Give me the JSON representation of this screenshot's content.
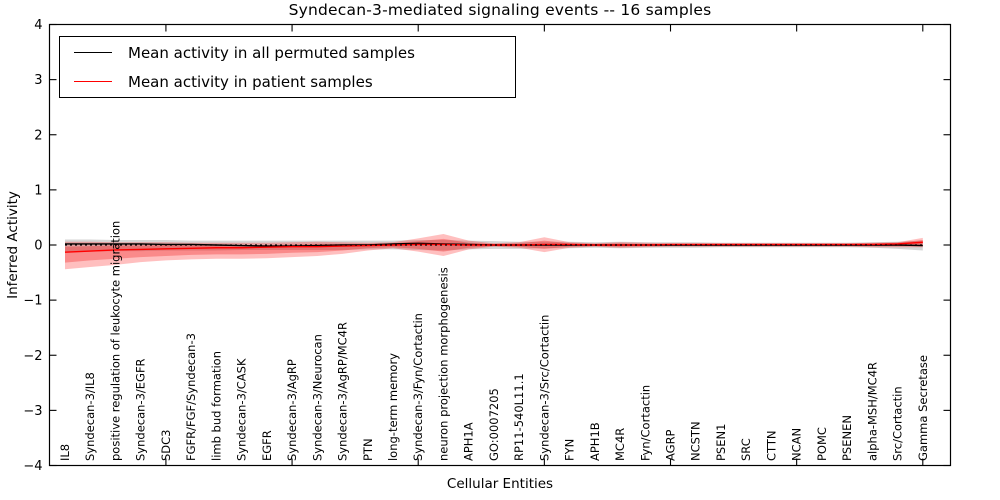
{
  "chart_data": {
    "type": "line",
    "title": "Syndecan-3-mediated signaling events -- 16 samples",
    "xlabel": "Cellular Entities",
    "ylabel": "Inferred Activity",
    "ylim": [
      -4,
      4
    ],
    "y_tick_values": [
      4,
      3,
      2,
      1,
      0,
      -1,
      -2,
      -3,
      -4
    ],
    "y_tick_labels": [
      "4",
      "3",
      "2",
      "1",
      "0",
      "−1",
      "−2",
      "−3",
      "−4"
    ],
    "x_major_tick_indices": [
      4,
      9,
      14,
      19,
      24,
      29,
      34
    ],
    "grid": false,
    "legend_position": "upper left",
    "zero_line": {
      "style": "dotted",
      "color": "#000000",
      "y": 0
    },
    "categories": [
      "IL8",
      "Syndecan-3/IL8",
      "positive regulation of leukocyte migration",
      "Syndecan-3/EGFR",
      "SDC3",
      "FGFR/FGF/Syndecan-3",
      "limb bud formation",
      "Syndecan-3/CASK",
      "EGFR",
      "Syndecan-3/AgRP",
      "Syndecan-3/Neurocan",
      "Syndecan-3/AgRP/MC4R",
      "PTN",
      "long-term memory",
      "Syndecan-3/Fyn/Cortactin",
      "neuron projection morphogenesis",
      "APH1A",
      "GO:0007205",
      "RP11-540L11.1",
      "Syndecan-3/Src/Cortactin",
      "FYN",
      "APH1B",
      "MC4R",
      "Fyn/Cortactin",
      "AGRP",
      "NCSTN",
      "PSEN1",
      "SRC",
      "CTTN",
      "NCAN",
      "POMC",
      "PSENEN",
      "alpha-MSH/MC4R",
      "Src/Cortactin",
      "Gamma Secretase"
    ],
    "series": [
      {
        "name": "Mean activity in all permuted samples",
        "color": "#000000",
        "values": [
          0.02,
          0.02,
          0.02,
          0.02,
          0.01,
          0.01,
          0.0,
          -0.01,
          -0.02,
          -0.02,
          -0.01,
          0.0,
          0.0,
          0.02,
          0.03,
          0.02,
          0.01,
          0.0,
          0.0,
          0.0,
          0.0,
          0.0,
          0.0,
          0.0,
          0.0,
          0.0,
          0.0,
          0.0,
          0.0,
          0.0,
          0.0,
          0.0,
          0.0,
          0.0,
          -0.01
        ]
      },
      {
        "name": "Mean activity in patient samples",
        "color": "#ff0000",
        "values": [
          -0.13,
          -0.11,
          -0.09,
          -0.08,
          -0.07,
          -0.06,
          -0.05,
          -0.05,
          -0.04,
          -0.03,
          -0.03,
          -0.02,
          -0.01,
          0.0,
          0.01,
          0.01,
          0.0,
          0.0,
          0.0,
          0.01,
          0.01,
          0.0,
          0.0,
          0.0,
          0.01,
          0.01,
          0.01,
          0.01,
          0.01,
          0.01,
          0.01,
          0.01,
          0.01,
          0.02,
          0.05
        ]
      }
    ],
    "bands": [
      {
        "name": "permuted-samples-spread",
        "color": "#999999",
        "opacity": 0.4,
        "upper": [
          0.1,
          0.1,
          0.09,
          0.09,
          0.09,
          0.08,
          0.08,
          0.08,
          0.08,
          0.08,
          0.08,
          0.08,
          0.08,
          0.08,
          0.09,
          0.09,
          0.08,
          0.07,
          0.06,
          0.06,
          0.06,
          0.05,
          0.06,
          0.05,
          0.05,
          0.05,
          0.04,
          0.04,
          0.04,
          0.04,
          0.04,
          0.04,
          0.05,
          0.06,
          0.08
        ],
        "lower": [
          -0.12,
          -0.12,
          -0.11,
          -0.11,
          -0.1,
          -0.1,
          -0.1,
          -0.09,
          -0.09,
          -0.09,
          -0.09,
          -0.09,
          -0.08,
          -0.08,
          -0.09,
          -0.1,
          -0.08,
          -0.07,
          -0.07,
          -0.06,
          -0.06,
          -0.05,
          -0.06,
          -0.05,
          -0.05,
          -0.05,
          -0.04,
          -0.04,
          -0.04,
          -0.04,
          -0.04,
          -0.04,
          -0.05,
          -0.07,
          -0.1
        ]
      },
      {
        "name": "patient-samples-spread-outer",
        "color": "#ff0000",
        "opacity": 0.25,
        "upper": [
          0.06,
          0.06,
          0.05,
          0.05,
          0.05,
          0.04,
          0.04,
          0.04,
          0.04,
          0.05,
          0.06,
          0.05,
          0.04,
          0.05,
          0.12,
          0.2,
          0.08,
          0.03,
          0.05,
          0.14,
          0.05,
          0.03,
          0.05,
          0.04,
          0.03,
          0.03,
          0.03,
          0.03,
          0.03,
          0.03,
          0.03,
          0.03,
          0.04,
          0.05,
          0.13
        ],
        "lower": [
          -0.44,
          -0.4,
          -0.36,
          -0.31,
          -0.28,
          -0.26,
          -0.25,
          -0.25,
          -0.24,
          -0.22,
          -0.2,
          -0.16,
          -0.1,
          -0.06,
          -0.12,
          -0.2,
          -0.08,
          -0.03,
          -0.05,
          -0.13,
          -0.05,
          -0.03,
          -0.05,
          -0.04,
          -0.03,
          -0.03,
          -0.03,
          -0.03,
          -0.03,
          -0.03,
          -0.03,
          -0.03,
          -0.04,
          -0.04,
          -0.04
        ]
      },
      {
        "name": "patient-samples-spread-inner",
        "color": "#ee0000",
        "opacity": 0.28,
        "upper": [
          -0.03,
          -0.02,
          -0.01,
          -0.01,
          0.0,
          -0.01,
          0.0,
          0.0,
          0.0,
          0.01,
          0.02,
          0.02,
          0.02,
          0.03,
          0.07,
          0.11,
          0.04,
          0.02,
          0.03,
          0.08,
          0.03,
          0.02,
          0.03,
          0.02,
          0.02,
          0.02,
          0.02,
          0.02,
          0.02,
          0.02,
          0.02,
          0.02,
          0.03,
          0.04,
          0.09
        ],
        "lower": [
          -0.32,
          -0.28,
          -0.25,
          -0.22,
          -0.2,
          -0.18,
          -0.17,
          -0.17,
          -0.16,
          -0.14,
          -0.13,
          -0.1,
          -0.06,
          -0.04,
          -0.07,
          -0.12,
          -0.05,
          -0.02,
          -0.03,
          -0.07,
          -0.03,
          -0.02,
          -0.03,
          -0.02,
          -0.02,
          -0.02,
          -0.02,
          -0.02,
          -0.02,
          -0.02,
          -0.02,
          -0.02,
          -0.02,
          -0.02,
          -0.02
        ]
      }
    ]
  }
}
